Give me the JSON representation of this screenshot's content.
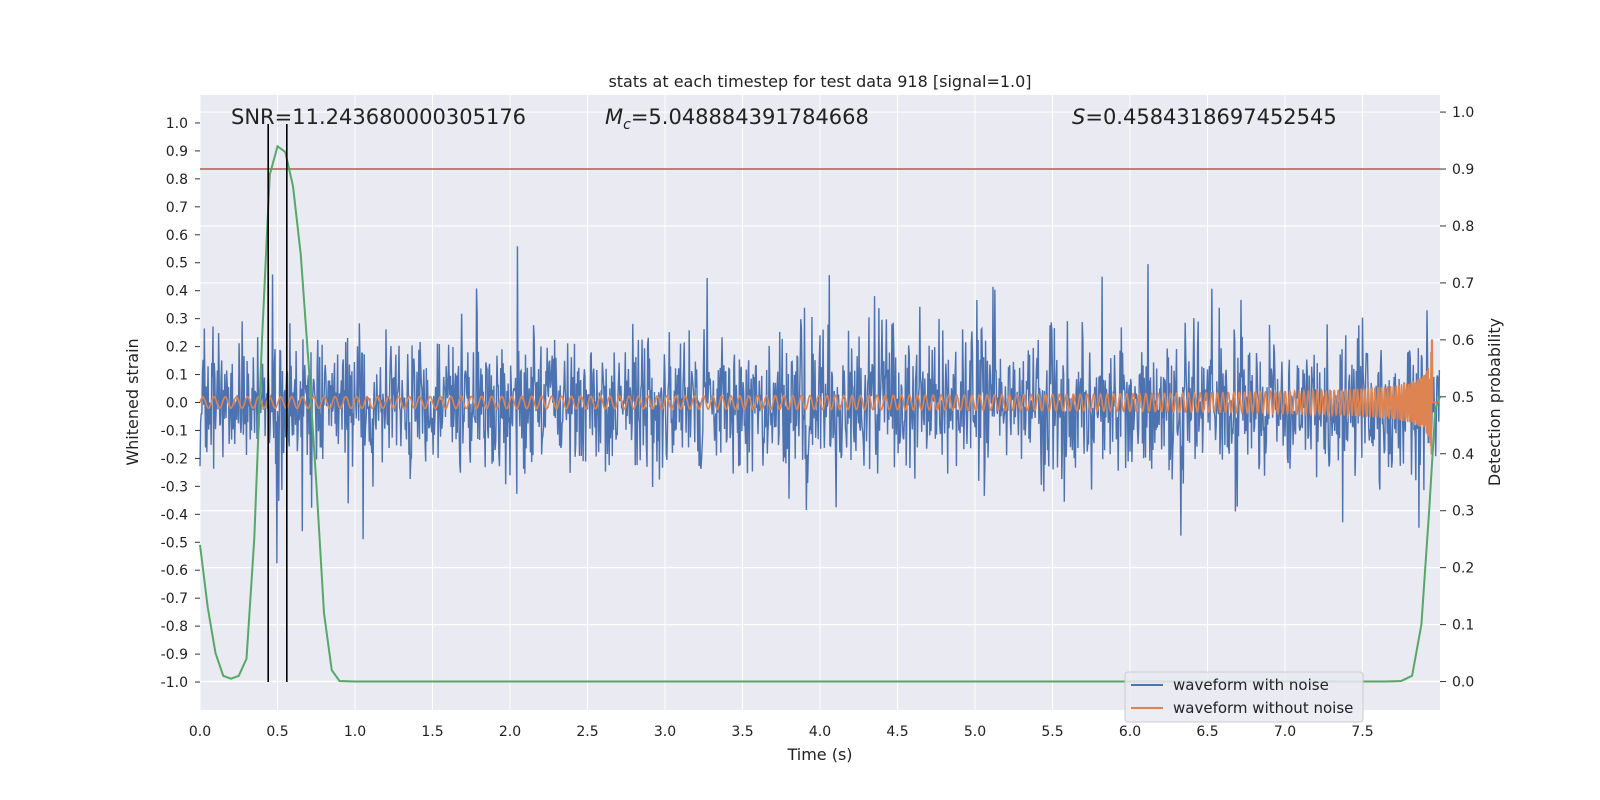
{
  "chart_data": {
    "type": "line",
    "title": "stats at each timestep for test data 918 [signal=1.0]",
    "xlabel": "Time (s)",
    "ylabel": "Whitened strain",
    "y2label": "Detection probability",
    "xlim": [
      0.0,
      8.0
    ],
    "ylim": [
      -1.1,
      1.1
    ],
    "y2lim": [
      -0.05,
      1.03
    ],
    "xticks": [
      "0.0",
      "0.5",
      "1.0",
      "1.5",
      "2.0",
      "2.5",
      "3.0",
      "3.5",
      "4.0",
      "4.5",
      "5.0",
      "5.5",
      "6.0",
      "6.5",
      "7.0",
      "7.5"
    ],
    "yticks": [
      "1.0",
      "0.9",
      "0.8",
      "0.7",
      "0.6",
      "0.5",
      "0.4",
      "0.3",
      "0.2",
      "0.1",
      "0.0",
      "-0.1",
      "-0.2",
      "-0.3",
      "-0.4",
      "-0.5",
      "-0.6",
      "-0.7",
      "-0.8",
      "-0.9",
      "-1.0"
    ],
    "y2ticks": [
      "1.0",
      "0.9",
      "0.8",
      "0.7",
      "0.6",
      "0.5",
      "0.4",
      "0.3",
      "0.2",
      "0.1",
      "0.0"
    ],
    "annotations": {
      "snr": "SNR=11.243680000305176",
      "mc_symbol": "M",
      "mc_sub": "c",
      "mc_value": "=5.048884391784668",
      "s_symbol": "S",
      "s_value": "=0.4584318697452545"
    },
    "threshold": {
      "value": 0.9,
      "axis": "y2",
      "color": "#c44e52"
    },
    "vertical_markers": [
      0.44,
      0.56
    ],
    "series": [
      {
        "name": "waveform with noise",
        "color": "#4c72b0",
        "kind": "noise",
        "amplitude_envelope": [
          0.45,
          0.95
        ]
      },
      {
        "name": "waveform without noise",
        "color": "#dd8452",
        "kind": "chirp",
        "start_amplitude": 0.02,
        "end_amplitude": 0.29,
        "end_time": 7.95
      },
      {
        "name": "detection probability",
        "color": "#55a868",
        "axis": "y2",
        "x": [
          0.0,
          0.05,
          0.1,
          0.15,
          0.2,
          0.25,
          0.3,
          0.35,
          0.4,
          0.45,
          0.5,
          0.55,
          0.6,
          0.65,
          0.7,
          0.75,
          0.8,
          0.85,
          0.9,
          1.0,
          2.0,
          3.0,
          4.0,
          5.0,
          6.0,
          7.0,
          7.65,
          7.75,
          7.82,
          7.88,
          7.93,
          7.97,
          8.0
        ],
        "y": [
          0.24,
          0.13,
          0.05,
          0.01,
          0.005,
          0.01,
          0.04,
          0.25,
          0.6,
          0.89,
          0.94,
          0.93,
          0.87,
          0.75,
          0.56,
          0.35,
          0.12,
          0.02,
          0.001,
          0.0,
          0.0,
          0.0,
          0.0,
          0.0,
          0.0,
          0.0,
          0.0,
          0.001,
          0.01,
          0.1,
          0.3,
          0.48,
          0.5
        ]
      }
    ],
    "legend": {
      "location": "lower-right",
      "entries": [
        {
          "label": "waveform with noise",
          "color": "#4c72b0"
        },
        {
          "label": "waveform without noise",
          "color": "#dd8452"
        }
      ]
    }
  }
}
